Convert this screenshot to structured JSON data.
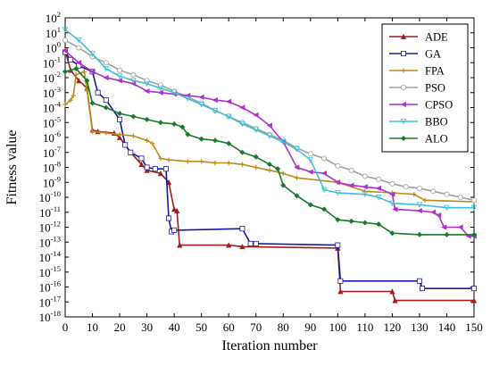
{
  "chart_data": {
    "type": "line",
    "title": "",
    "xlabel": "Iteration number",
    "ylabel": "Fitness value",
    "xlim": [
      0,
      150
    ],
    "ylim_log10": [
      -18,
      2
    ],
    "y_scale": "log",
    "x_ticks": [
      0,
      10,
      20,
      30,
      40,
      50,
      60,
      70,
      80,
      90,
      100,
      110,
      120,
      130,
      140,
      150
    ],
    "y_tick_exponents": [
      2,
      1,
      0,
      -1,
      -2,
      -3,
      -4,
      -5,
      -6,
      -7,
      -8,
      -9,
      -10,
      -11,
      -12,
      -13,
      -14,
      -15,
      -16,
      -17,
      -18
    ],
    "y_tick_base": "10",
    "grid": false,
    "legend_position": "top-right",
    "series": [
      {
        "name": "ADE",
        "color": "#a01e1e",
        "marker": "triangle",
        "points": [
          [
            0,
            -0.2
          ],
          [
            2,
            -1.5
          ],
          [
            5,
            -2.2
          ],
          [
            8,
            -2.7
          ],
          [
            10,
            -5.5
          ],
          [
            12,
            -5.6
          ],
          [
            18,
            -5.7
          ],
          [
            20,
            -6.0
          ],
          [
            24,
            -7.0
          ],
          [
            28,
            -7.8
          ],
          [
            30,
            -8.2
          ],
          [
            35,
            -8.4
          ],
          [
            38,
            -9.0
          ],
          [
            40,
            -10.8
          ],
          [
            41,
            -10.9
          ],
          [
            42,
            -13.2
          ],
          [
            60,
            -13.2
          ],
          [
            65,
            -13.3
          ],
          [
            100,
            -13.4
          ],
          [
            101,
            -16.3
          ],
          [
            120,
            -16.3
          ],
          [
            121,
            -16.9
          ],
          [
            150,
            -16.9
          ]
        ]
      },
      {
        "name": "GA",
        "color": "#1a1aa0",
        "marker": "square",
        "points": [
          [
            0,
            -0.3
          ],
          [
            2,
            -0.8
          ],
          [
            5,
            -1.2
          ],
          [
            10,
            -1.6
          ],
          [
            12,
            -3.0
          ],
          [
            15,
            -3.5
          ],
          [
            20,
            -4.8
          ],
          [
            22,
            -6.5
          ],
          [
            24,
            -7.0
          ],
          [
            28,
            -7.4
          ],
          [
            30,
            -8.0
          ],
          [
            33,
            -8.1
          ],
          [
            37,
            -8.1
          ],
          [
            38,
            -11.4
          ],
          [
            39,
            -12.3
          ],
          [
            40,
            -12.2
          ],
          [
            65,
            -12.1
          ],
          [
            68,
            -13.1
          ],
          [
            70,
            -13.1
          ],
          [
            100,
            -13.2
          ],
          [
            101,
            -15.6
          ],
          [
            130,
            -15.6
          ],
          [
            131,
            -16.1
          ],
          [
            150,
            -16.1
          ]
        ]
      },
      {
        "name": "FPA",
        "color": "#c08a16",
        "marker": "star",
        "points": [
          [
            0,
            -3.8
          ],
          [
            2,
            -3.5
          ],
          [
            3,
            -3.2
          ],
          [
            4,
            -1.8
          ],
          [
            7,
            -1.6
          ],
          [
            8,
            -2.8
          ],
          [
            10,
            -5.6
          ],
          [
            15,
            -5.7
          ],
          [
            20,
            -5.8
          ],
          [
            25,
            -5.9
          ],
          [
            30,
            -6.2
          ],
          [
            32,
            -6.4
          ],
          [
            35,
            -7.4
          ],
          [
            38,
            -7.5
          ],
          [
            45,
            -7.6
          ],
          [
            50,
            -7.6
          ],
          [
            55,
            -7.7
          ],
          [
            60,
            -7.7
          ],
          [
            65,
            -7.8
          ],
          [
            70,
            -8.0
          ],
          [
            75,
            -8.2
          ],
          [
            80,
            -8.4
          ],
          [
            85,
            -8.7
          ],
          [
            100,
            -9.0
          ],
          [
            110,
            -9.6
          ],
          [
            120,
            -9.7
          ],
          [
            128,
            -9.8
          ],
          [
            132,
            -10.2
          ],
          [
            150,
            -10.3
          ]
        ]
      },
      {
        "name": "PSO",
        "color": "#a0a0a0",
        "marker": "circle",
        "points": [
          [
            0,
            0.5
          ],
          [
            5,
            0.0
          ],
          [
            10,
            -0.6
          ],
          [
            15,
            -1.0
          ],
          [
            20,
            -1.5
          ],
          [
            25,
            -1.8
          ],
          [
            30,
            -2.2
          ],
          [
            35,
            -2.5
          ],
          [
            40,
            -2.9
          ],
          [
            45,
            -3.3
          ],
          [
            50,
            -3.7
          ],
          [
            55,
            -4.2
          ],
          [
            60,
            -4.6
          ],
          [
            65,
            -5.0
          ],
          [
            70,
            -5.4
          ],
          [
            75,
            -5.8
          ],
          [
            80,
            -6.2
          ],
          [
            85,
            -6.7
          ],
          [
            90,
            -7.1
          ],
          [
            95,
            -7.4
          ],
          [
            100,
            -7.9
          ],
          [
            105,
            -8.2
          ],
          [
            110,
            -8.6
          ],
          [
            115,
            -8.8
          ],
          [
            120,
            -9.1
          ],
          [
            125,
            -9.3
          ],
          [
            130,
            -9.4
          ],
          [
            135,
            -9.6
          ],
          [
            140,
            -9.8
          ],
          [
            145,
            -10.0
          ],
          [
            150,
            -10.2
          ]
        ]
      },
      {
        "name": "CPSO",
        "color": "#b030d0",
        "marker": "triangle-left",
        "points": [
          [
            0,
            -0.2
          ],
          [
            5,
            -1.0
          ],
          [
            10,
            -1.6
          ],
          [
            15,
            -2.0
          ],
          [
            20,
            -2.2
          ],
          [
            25,
            -2.4
          ],
          [
            30,
            -2.9
          ],
          [
            35,
            -3.0
          ],
          [
            40,
            -3.1
          ],
          [
            45,
            -3.2
          ],
          [
            50,
            -3.3
          ],
          [
            55,
            -3.5
          ],
          [
            60,
            -3.6
          ],
          [
            65,
            -4.0
          ],
          [
            70,
            -4.5
          ],
          [
            75,
            -5.2
          ],
          [
            80,
            -6.3
          ],
          [
            85,
            -8.0
          ],
          [
            90,
            -8.3
          ],
          [
            95,
            -8.4
          ],
          [
            100,
            -9.0
          ],
          [
            105,
            -9.2
          ],
          [
            110,
            -9.3
          ],
          [
            115,
            -9.4
          ],
          [
            120,
            -9.8
          ],
          [
            121,
            -10.8
          ],
          [
            130,
            -10.9
          ],
          [
            135,
            -11.0
          ],
          [
            137,
            -11.2
          ],
          [
            139,
            -12.0
          ],
          [
            145,
            -12.0
          ],
          [
            148,
            -12.6
          ],
          [
            150,
            -12.6
          ]
        ]
      },
      {
        "name": "BBO",
        "color": "#40c0d8",
        "marker": "triangle-down",
        "points": [
          [
            0,
            1.2
          ],
          [
            5,
            0.5
          ],
          [
            10,
            -0.4
          ],
          [
            15,
            -1.4
          ],
          [
            20,
            -1.9
          ],
          [
            25,
            -2.2
          ],
          [
            30,
            -2.4
          ],
          [
            35,
            -2.7
          ],
          [
            40,
            -3.0
          ],
          [
            45,
            -3.4
          ],
          [
            50,
            -3.8
          ],
          [
            55,
            -4.2
          ],
          [
            60,
            -4.6
          ],
          [
            65,
            -5.1
          ],
          [
            70,
            -5.5
          ],
          [
            75,
            -5.9
          ],
          [
            80,
            -6.3
          ],
          [
            85,
            -6.8
          ],
          [
            90,
            -7.5
          ],
          [
            95,
            -9.5
          ],
          [
            100,
            -9.7
          ],
          [
            110,
            -9.8
          ],
          [
            115,
            -10.0
          ],
          [
            120,
            -10.4
          ],
          [
            130,
            -10.5
          ],
          [
            140,
            -10.7
          ],
          [
            150,
            -10.7
          ]
        ]
      },
      {
        "name": "ALO",
        "color": "#1a7a2a",
        "marker": "diamond",
        "points": [
          [
            0,
            -1.6
          ],
          [
            4,
            -1.4
          ],
          [
            8,
            -2.2
          ],
          [
            10,
            -3.7
          ],
          [
            15,
            -4.0
          ],
          [
            20,
            -4.4
          ],
          [
            25,
            -4.6
          ],
          [
            30,
            -4.8
          ],
          [
            35,
            -5.0
          ],
          [
            40,
            -5.1
          ],
          [
            43,
            -5.3
          ],
          [
            45,
            -5.8
          ],
          [
            50,
            -6.1
          ],
          [
            55,
            -6.2
          ],
          [
            60,
            -6.4
          ],
          [
            65,
            -7.0
          ],
          [
            70,
            -7.3
          ],
          [
            75,
            -7.8
          ],
          [
            78,
            -8.1
          ],
          [
            80,
            -9.2
          ],
          [
            85,
            -9.9
          ],
          [
            90,
            -10.5
          ],
          [
            95,
            -10.8
          ],
          [
            100,
            -11.5
          ],
          [
            105,
            -11.6
          ],
          [
            110,
            -11.7
          ],
          [
            115,
            -11.8
          ],
          [
            120,
            -12.4
          ],
          [
            130,
            -12.5
          ],
          [
            140,
            -12.5
          ],
          [
            150,
            -12.5
          ]
        ]
      }
    ]
  }
}
